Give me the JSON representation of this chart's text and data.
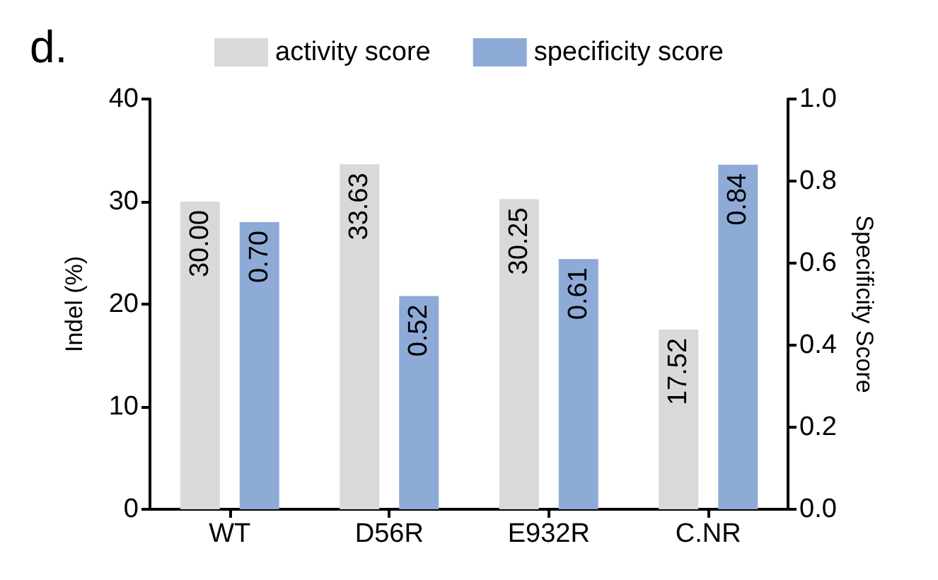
{
  "chart_data": {
    "type": "bar",
    "title": "d.",
    "categories": [
      "WT",
      "D56R",
      "E932R",
      "C.NR"
    ],
    "series": [
      {
        "name": "activity score",
        "color": "#d9d9d9",
        "values": [
          30.0,
          33.63,
          30.25,
          17.52
        ],
        "value_labels": [
          "30.00",
          "33.63",
          "30.25",
          "17.52"
        ]
      },
      {
        "name": "specificity score",
        "color": "#8eabd7",
        "axis": "y2",
        "values": [
          0.7,
          0.52,
          0.61,
          0.84
        ],
        "value_labels": [
          "0.70",
          "0.52",
          "0.61",
          "0.84"
        ]
      }
    ],
    "ylabel": "Indel (%)",
    "y2label": "Specificity Score",
    "ylim": [
      0,
      40
    ],
    "yticks": [
      0,
      10,
      20,
      30,
      40
    ],
    "y2lim": [
      0,
      1
    ],
    "y2ticks": [
      {
        "value": 0,
        "label": "0.0"
      },
      {
        "value": 0.2,
        "label": "0.2"
      },
      {
        "value": 0.4,
        "label": "0.4"
      },
      {
        "value": 0.6,
        "label": "0.6"
      },
      {
        "value": 0.8,
        "label": "0.8"
      },
      {
        "value": 1,
        "label": "1.0"
      }
    ],
    "legend": "top",
    "grid": false
  }
}
